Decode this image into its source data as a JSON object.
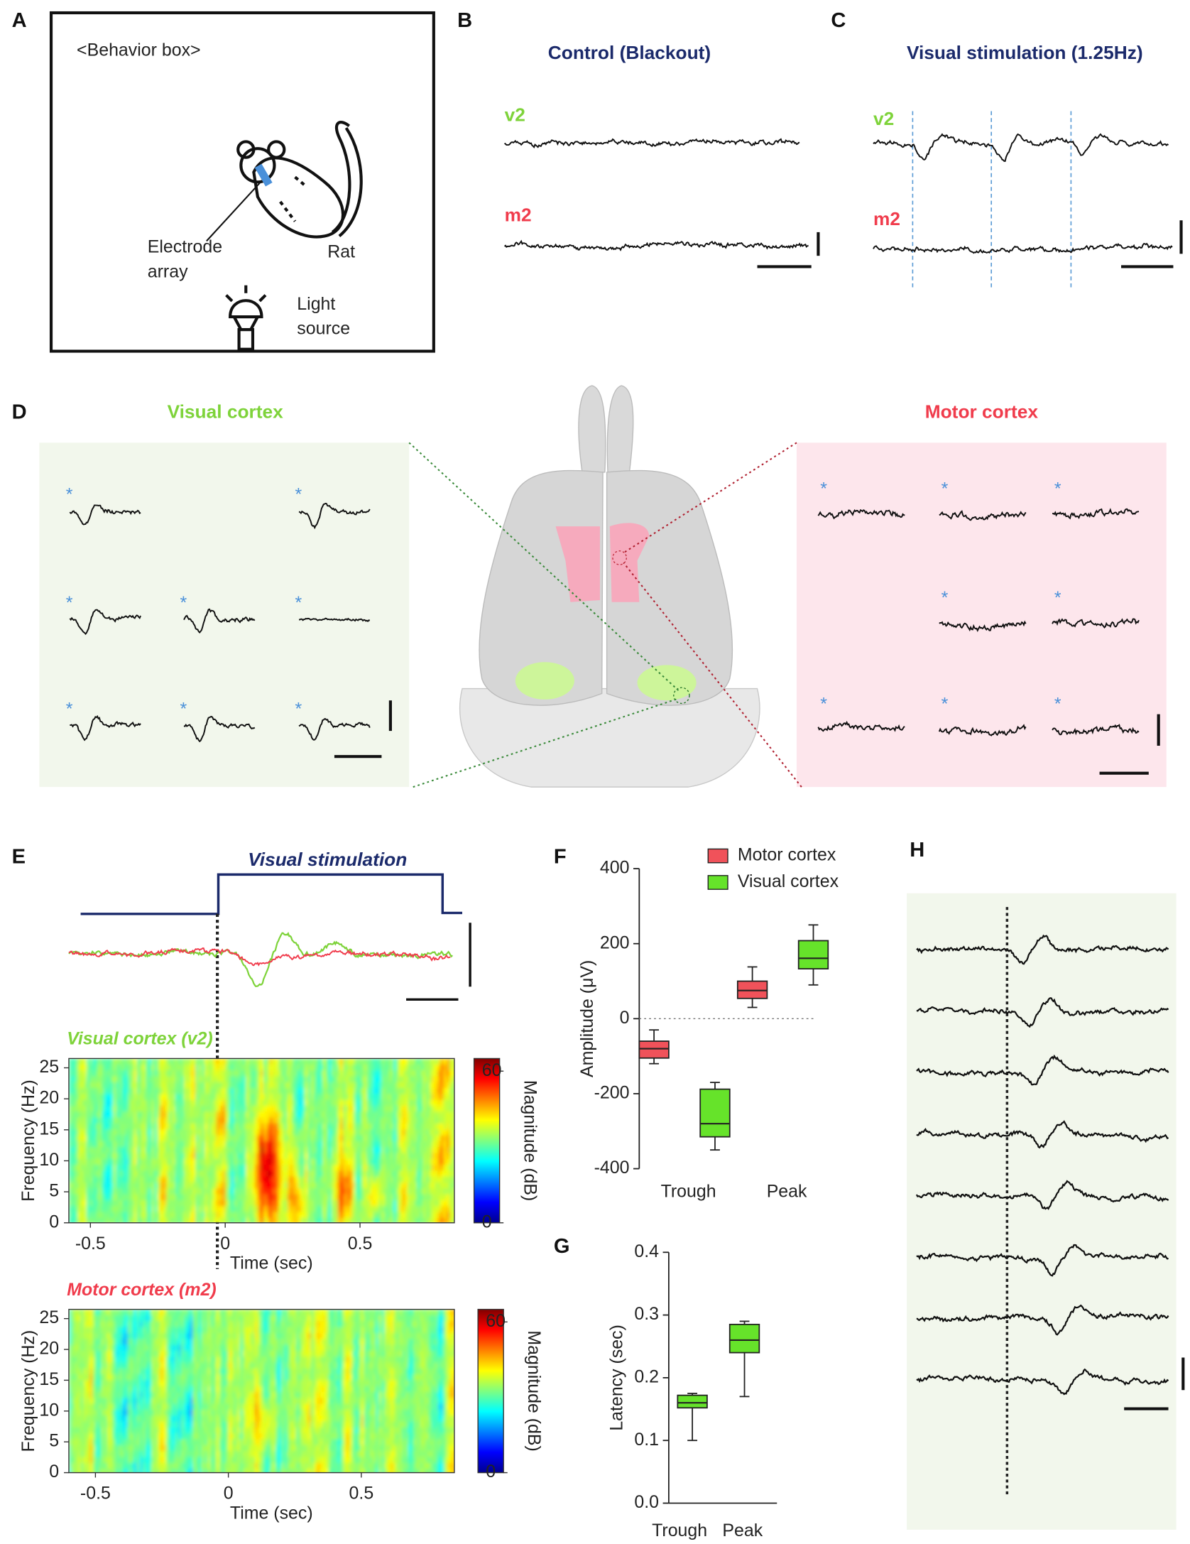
{
  "panels": {
    "A": {
      "letter": "A",
      "box_label": "<Behavior box>",
      "electrode": "Electrode",
      "array": "array",
      "rat": "Rat",
      "light": "Light",
      "source": "source"
    },
    "B": {
      "letter": "B",
      "title": "Control (Blackout)",
      "v2": "v2",
      "m2": "m2"
    },
    "C": {
      "letter": "C",
      "title": "Visual stimulation (1.25Hz)",
      "v2": "v2",
      "m2": "m2"
    },
    "D": {
      "letter": "D",
      "visual": "Visual cortex",
      "motor": "Motor cortex"
    },
    "E": {
      "letter": "E",
      "stim": "Visual stimulation",
      "spectrograms": [
        {
          "title": "Visual cortex (v2)",
          "ylabel": "Frequency (Hz)",
          "xlabel": "Time (sec)",
          "clabel": "Magnitude (dB)",
          "xlim": [
            -0.58,
            0.85
          ],
          "xticks": [
            -0.5,
            0,
            0.5
          ],
          "ylim": [
            0,
            26.5
          ],
          "yticks": [
            0,
            5,
            10,
            15,
            20,
            25
          ],
          "clim": [
            0,
            65
          ],
          "cticks": [
            0,
            60
          ]
        },
        {
          "title": "Motor cortex (m2)",
          "ylabel": "Frequency (Hz)",
          "xlabel": "Time (sec)",
          "clabel": "Magnitude (dB)",
          "xlim": [
            -0.6,
            0.85
          ],
          "xticks": [
            -0.5,
            0,
            0.5
          ],
          "ylim": [
            0,
            26.5
          ],
          "yticks": [
            0,
            5,
            10,
            15,
            20,
            25
          ],
          "clim": [
            0,
            65
          ],
          "cticks": [
            0,
            60
          ]
        }
      ]
    },
    "F": {
      "letter": "F"
    },
    "G": {
      "letter": "G"
    },
    "H": {
      "letter": "H"
    }
  },
  "chart_data": [
    {
      "type": "box",
      "ylabel": "Amplitude (μV)",
      "categories": [
        "Trough",
        "Peak"
      ],
      "ylim": [
        -400,
        400
      ],
      "yticks": [
        -400,
        -200,
        0,
        200,
        400
      ],
      "zero_line": true,
      "legend": "top",
      "series": [
        {
          "name": "Motor cortex",
          "color": "#f0525a",
          "low": [
            -120,
            30
          ],
          "q1": [
            -105,
            54
          ],
          "median": [
            -80,
            75
          ],
          "q3": [
            -60,
            100
          ],
          "high": [
            -30,
            138
          ]
        },
        {
          "name": "Visual cortex",
          "color": "#66e32a",
          "low": [
            -350,
            90
          ],
          "q1": [
            -315,
            133
          ],
          "median": [
            -280,
            161
          ],
          "q3": [
            -188,
            208
          ],
          "high": [
            -170,
            250
          ]
        }
      ]
    },
    {
      "type": "box",
      "ylabel": "Latency (sec)",
      "categories": [
        "Trough",
        "Peak"
      ],
      "ylim": [
        0,
        0.4
      ],
      "yticks": [
        {
          "value": 0,
          "label": "0.0"
        },
        0.1,
        0.2,
        0.3,
        0.4
      ],
      "series": [
        {
          "color": "#66e32a",
          "low": [
            0.1,
            0.17
          ],
          "q1": [
            0.152,
            0.24
          ],
          "median": [
            0.16,
            0.26
          ],
          "q3": [
            0.172,
            0.285
          ],
          "high": [
            0.175,
            0.29
          ]
        }
      ]
    }
  ]
}
